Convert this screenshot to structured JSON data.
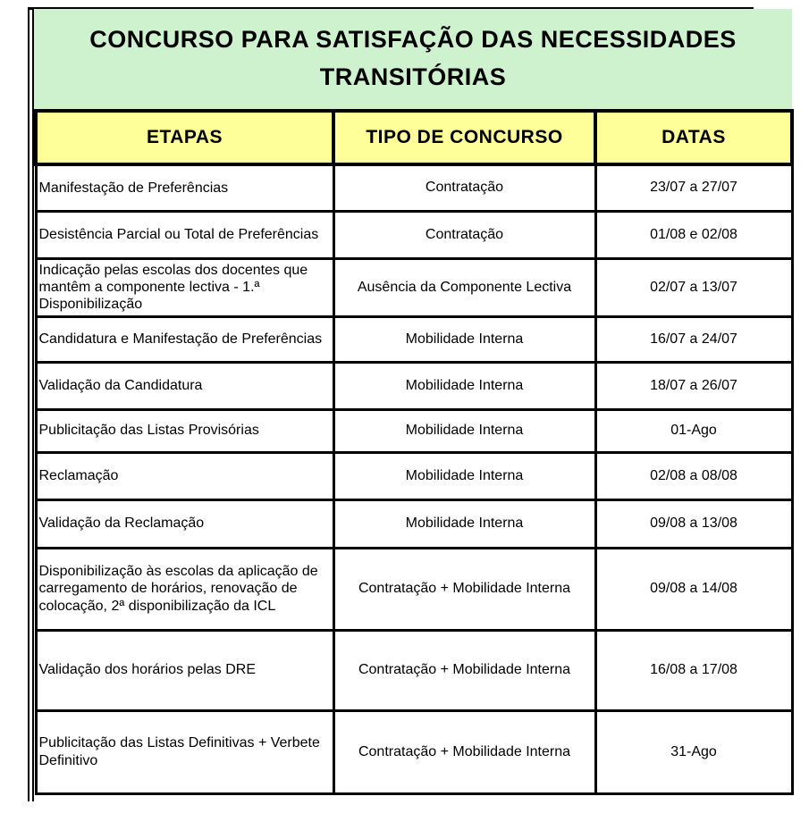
{
  "title": "CONCURSO PARA SATISFAÇÃO DAS NECESSIDADES TRANSITÓRIAS",
  "table": {
    "headers": [
      "ETAPAS",
      "TIPO DE CONCURSO",
      "DATAS"
    ],
    "rows": [
      {
        "etapa": "Manifestação de Preferências",
        "tipo": "Contratação",
        "datas": "23/07 a 27/07"
      },
      {
        "etapa": "Desistência Parcial ou Total de Preferências",
        "tipo": "Contratação",
        "datas": "01/08 e 02/08"
      },
      {
        "etapa": "Indicação pelas escolas dos docentes que mantêm a componente lectiva - 1.ª Disponibilização",
        "tipo": "Ausência da Componente Lectiva",
        "datas": "02/07 a 13/07"
      },
      {
        "etapa": "Candidatura e Manifestação de Preferências",
        "tipo": "Mobilidade Interna",
        "datas": "16/07 a 24/07"
      },
      {
        "etapa": "Validação da Candidatura",
        "tipo": "Mobilidade Interna",
        "datas": "18/07 a 26/07"
      },
      {
        "etapa": "Publicitação das Listas Provisórias",
        "tipo": "Mobilidade Interna",
        "datas": "01-Ago"
      },
      {
        "etapa": "Reclamação",
        "tipo": "Mobilidade Interna",
        "datas": "02/08 a 08/08"
      },
      {
        "etapa": "Validação da Reclamação",
        "tipo": "Mobilidade Interna",
        "datas": "09/08 a 13/08"
      },
      {
        "etapa": "Disponibilização às escolas da aplicação de carregamento de horários, renovação de colocação, 2ª disponibilização da ICL",
        "tipo": "Contratação + Mobilidade Interna",
        "datas": "09/08 a 14/08"
      },
      {
        "etapa": "Validação dos horários pelas DRE",
        "tipo": "Contratação + Mobilidade Interna",
        "datas": "16/08 a 17/08"
      },
      {
        "etapa": "Publicitação das Listas Definitivas + Verbete Definitivo",
        "tipo": "Contratação + Mobilidade Interna",
        "datas": "31-Ago"
      }
    ]
  },
  "colors": {
    "title_bg": "#cdf2cd",
    "header_bg": "#ffff99",
    "border": "#000000",
    "cell_bg": "#ffffff",
    "text": "#000000"
  }
}
